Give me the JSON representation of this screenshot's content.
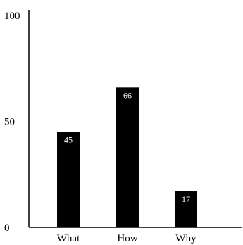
{
  "chart_data": {
    "type": "bar",
    "categories": [
      "What",
      "How",
      "Why"
    ],
    "values": [
      45,
      66,
      17
    ],
    "data_labels": [
      "45",
      "66",
      "17"
    ],
    "yticks": [
      "0",
      "50",
      "100"
    ],
    "ylim": [
      0,
      100
    ],
    "grid": false,
    "legend": "none",
    "bar_color": "#000000",
    "label_color": "#ffffff"
  }
}
